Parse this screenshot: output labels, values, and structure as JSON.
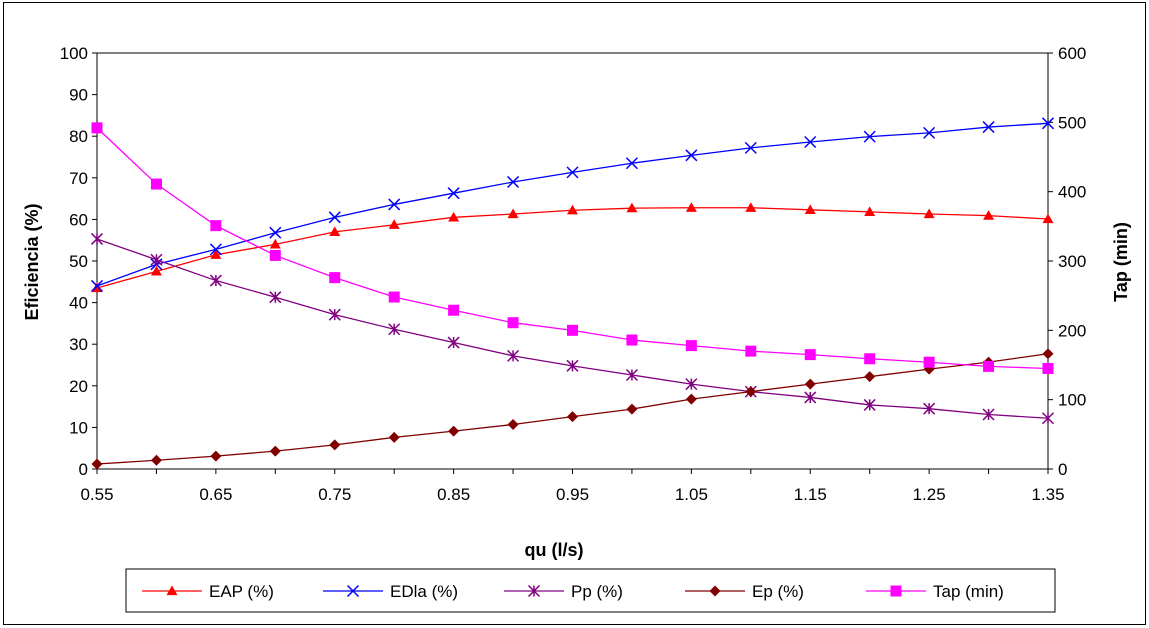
{
  "chart_data": {
    "type": "line",
    "title": "",
    "xlabel": "qu (l/s)",
    "ylabel": "Eficiencia (%)",
    "y2label": "Tap (min)",
    "xlim": [
      0.55,
      1.35
    ],
    "ylim": [
      0,
      100
    ],
    "y2lim": [
      0,
      600
    ],
    "grid": false,
    "legend_position": "bottom",
    "x": [
      0.55,
      0.6,
      0.65,
      0.7,
      0.75,
      0.8,
      0.85,
      0.9,
      0.95,
      1.0,
      1.05,
      1.1,
      1.15,
      1.2,
      1.25,
      1.3,
      1.35
    ],
    "x_tick_labels": [
      "0.55",
      "0.65",
      "0.75",
      "0.85",
      "0.95",
      "1.05",
      "1.15",
      "1.25",
      "1.35"
    ],
    "y_tick_labels": [
      "0",
      "10",
      "20",
      "30",
      "40",
      "50",
      "60",
      "70",
      "80",
      "90",
      "100"
    ],
    "y2_tick_labels": [
      "0",
      "100",
      "200",
      "300",
      "400",
      "500",
      "600"
    ],
    "series": [
      {
        "name": "EAP (%)",
        "axis": "left",
        "color": "#ff0000",
        "marker": "triangle",
        "values": [
          43.5,
          47.5,
          51.5,
          54,
          57,
          58.7,
          60.5,
          61.3,
          62.2,
          62.7,
          62.8,
          62.8,
          62.3,
          61.8,
          61.3,
          60.9,
          60.1
        ]
      },
      {
        "name": "EDla (%)",
        "axis": "left",
        "color": "#0000ff",
        "marker": "x",
        "values": [
          44,
          49.2,
          52.8,
          56.8,
          60.5,
          63.6,
          66.3,
          69,
          71.3,
          73.5,
          75.4,
          77.2,
          78.6,
          79.9,
          80.8,
          82.2,
          83.1
        ]
      },
      {
        "name": "Pp (%)",
        "axis": "left",
        "color": "#800080",
        "marker": "star",
        "values": [
          55.3,
          50.3,
          45.3,
          41.3,
          37.1,
          33.6,
          30.4,
          27.2,
          24.8,
          22.6,
          20.4,
          18.6,
          17.2,
          15.4,
          14.5,
          13.1,
          12.2
        ]
      },
      {
        "name": "Ep (%)",
        "axis": "left",
        "color": "#800000",
        "marker": "diamond",
        "values": [
          1.2,
          2.1,
          3.1,
          4.3,
          5.8,
          7.6,
          9.1,
          10.7,
          12.6,
          14.4,
          16.8,
          18.6,
          20.4,
          22.2,
          24,
          25.7,
          27.7
        ]
      },
      {
        "name": "Tap (min)",
        "axis": "right",
        "color": "#ff00ff",
        "marker": "square",
        "values": [
          492,
          411,
          351,
          308,
          276,
          248,
          229,
          211,
          200,
          186,
          178,
          170,
          165,
          159,
          154,
          148,
          145
        ]
      }
    ]
  }
}
